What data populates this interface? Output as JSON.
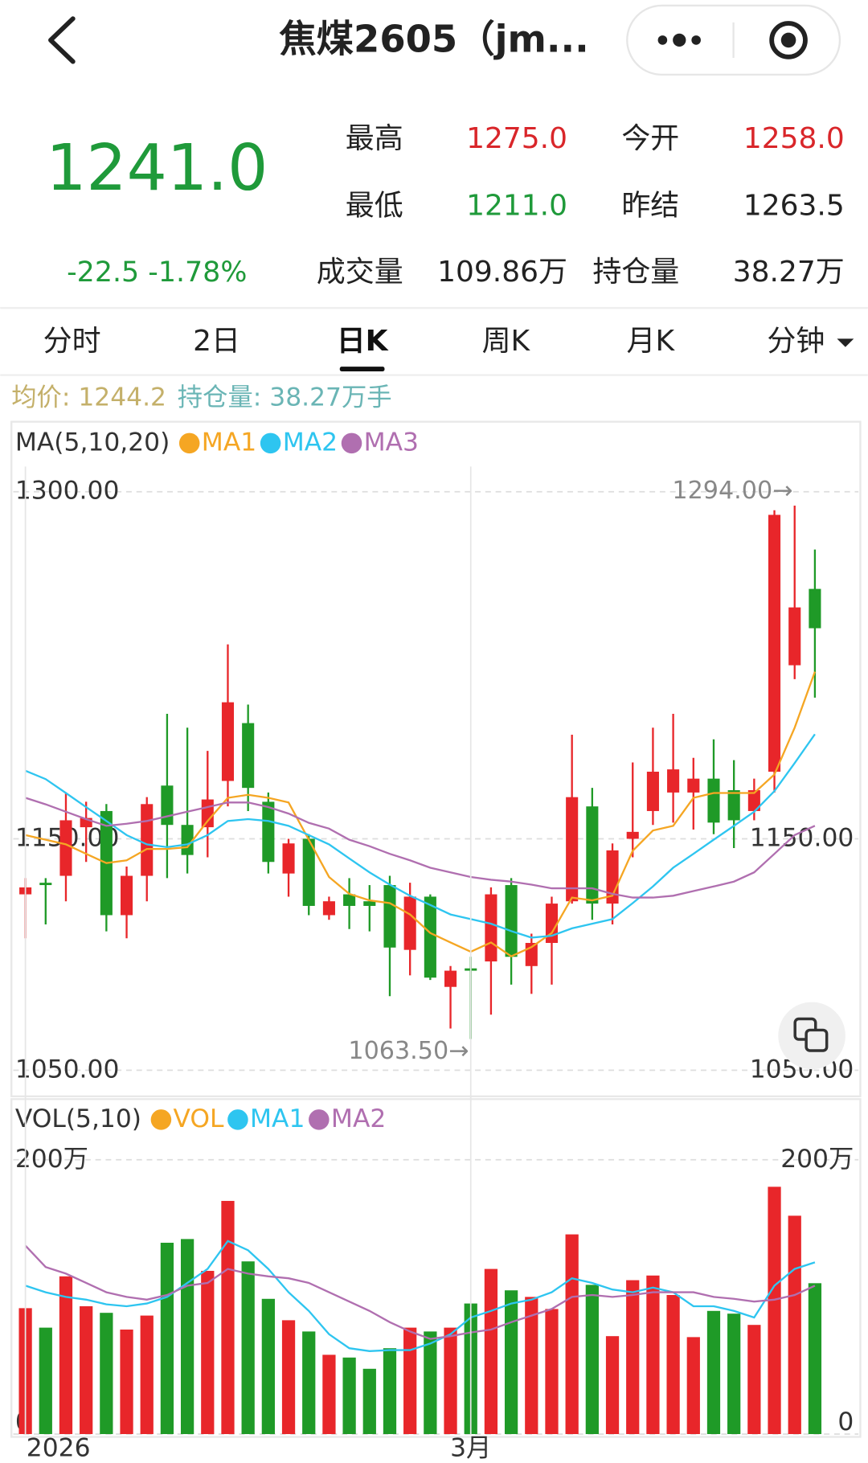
{
  "header": {
    "title": "焦煤2605（jm..."
  },
  "quote": {
    "price": "1241.0",
    "change": "-22.5 -1.78%",
    "stats": [
      {
        "label": "最高",
        "value": "1275.0",
        "color": "#d9262a"
      },
      {
        "label": "今开",
        "value": "1258.0",
        "color": "#d9262a"
      },
      {
        "label": "最低",
        "value": "1211.0",
        "color": "#1f9a3a"
      },
      {
        "label": "昨结",
        "value": "1263.5",
        "color": "#222222"
      },
      {
        "label": "成交量",
        "value": "109.86万",
        "color": "#222222"
      },
      {
        "label": "持仓量",
        "value": "38.27万",
        "color": "#222222"
      }
    ]
  },
  "tabs": [
    "分时",
    "2日",
    "日K",
    "周K",
    "月K",
    "分钟"
  ],
  "active_tab": 2,
  "info": {
    "avg": "均价: 1244.2",
    "oi": "持仓量: 38.27万手"
  },
  "chart_data": [
    {
      "type": "candlestick",
      "legend_title": "MA(5,10,20)",
      "up_color": "#e8262a",
      "down_color": "#1f9a27",
      "open": [
        1126,
        1131,
        1134,
        1155,
        1162,
        1117,
        1134,
        1173,
        1156,
        1155,
        1175,
        1200,
        1166,
        1135,
        1150,
        1117,
        1126,
        1123,
        1130,
        1102,
        1125,
        1086,
        1094,
        1097,
        1130,
        1095,
        1105,
        1123,
        1164,
        1122,
        1150,
        1162,
        1170,
        1170,
        1176,
        1171,
        1162,
        1179,
        1225,
        1258
      ],
      "high": [
        1133,
        1133,
        1170,
        1166,
        1165,
        1138,
        1168,
        1204,
        1198,
        1188,
        1234,
        1208,
        1170,
        1150,
        1152,
        1125,
        1133,
        1130,
        1134,
        1131,
        1126,
        1095,
        1099,
        1129,
        1133,
        1109,
        1125,
        1195,
        1172,
        1148,
        1183,
        1198,
        1204,
        1185,
        1193,
        1184,
        1176,
        1292,
        1294,
        1275
      ],
      "low": [
        1107,
        1113,
        1123,
        1140,
        1110,
        1107,
        1123,
        1133,
        1135,
        1142,
        1164,
        1162,
        1135,
        1125,
        1117,
        1115,
        1111,
        1110,
        1082,
        1091,
        1089,
        1068,
        1063.5,
        1074,
        1087,
        1083,
        1087,
        1122,
        1115,
        1113,
        1142,
        1156,
        1157,
        1154,
        1152,
        1146,
        1158,
        1170,
        1219,
        1211
      ],
      "close": [
        1129,
        1130,
        1158,
        1159,
        1117,
        1134,
        1165,
        1156,
        1143,
        1167,
        1209,
        1172,
        1140,
        1148,
        1121,
        1123,
        1121,
        1121,
        1103,
        1125,
        1090,
        1093,
        1093,
        1126,
        1099,
        1105,
        1122,
        1168,
        1122,
        1145,
        1153,
        1179,
        1180,
        1176,
        1157,
        1158,
        1171,
        1290,
        1250,
        1241
      ],
      "series": [
        {
          "name": "MA1",
          "color": "#f5a623",
          "values": [
            1151.6,
            1149.6,
            1147.6,
            1143.5,
            1139.5,
            1140.7,
            1145.6,
            1145.6,
            1146.4,
            1157.7,
            1167.7,
            1169.0,
            1167.7,
            1165.7,
            1149.6,
            1133.5,
            1126.2,
            1123.4,
            1122.2,
            1117.3,
            1109.3,
            1105.2,
            1101.2,
            1105.2,
            1099.2,
            1103.2,
            1109.3,
            1124.6,
            1123.4,
            1125.4,
            1144.8,
            1153.6,
            1155.6,
            1167.7,
            1169.8,
            1169.8,
            1169.8,
            1177.8,
            1198.0,
            1222.2
          ]
        },
        {
          "name": "MA2",
          "color": "#2ec5f0",
          "values": [
            1179.4,
            1175.8,
            1169.8,
            1163.7,
            1157.7,
            1151.6,
            1147.6,
            1146.4,
            1147.6,
            1151.6,
            1157.7,
            1158.5,
            1157.7,
            1155.6,
            1151.6,
            1147.6,
            1141.5,
            1135.5,
            1130.2,
            1125.4,
            1121.4,
            1117.3,
            1115.3,
            1113.3,
            1110.1,
            1107.3,
            1108.1,
            1111.3,
            1113.3,
            1115.3,
            1122.2,
            1129.4,
            1137.5,
            1143.5,
            1149.6,
            1155.6,
            1161.7,
            1170.6,
            1182.7,
            1195.2
          ]
        },
        {
          "name": "MA3",
          "color": "#b06fb0",
          "values": [
            1167.7,
            1164.9,
            1161.7,
            1158.5,
            1155.6,
            1156.5,
            1157.7,
            1159.7,
            1161.7,
            1163.7,
            1165.7,
            1165.7,
            1163.7,
            1160.9,
            1156.9,
            1154.4,
            1149.6,
            1146.8,
            1143.5,
            1140.7,
            1137.5,
            1135.5,
            1133.5,
            1132.3,
            1131.5,
            1130.2,
            1128.6,
            1128.6,
            1128.6,
            1126.2,
            1124.6,
            1124.6,
            1125.4,
            1127.4,
            1129.4,
            1131.5,
            1135.5,
            1143.5,
            1151.6,
            1155.6
          ]
        }
      ],
      "ylim": [
        1050,
        1300
      ],
      "yticks": [
        {
          "value": 1050,
          "label": "1050.00"
        },
        {
          "value": 1150,
          "label": "1150.00"
        },
        {
          "value": 1300,
          "label": "1300.00"
        }
      ],
      "annotations": [
        {
          "text": "1294.00→",
          "value": 1294
        },
        {
          "text": "1063.50→",
          "value": 1063.5
        }
      ],
      "grid": true
    },
    {
      "type": "bar",
      "legend_title": "VOL(5,10)",
      "name": "VOL",
      "color": "#f5a623",
      "categories": [
        "2026",
        null,
        null,
        null,
        null,
        null,
        null,
        null,
        null,
        null,
        null,
        null,
        null,
        null,
        null,
        null,
        null,
        null,
        null,
        null,
        null,
        null,
        "3月",
        null,
        null,
        null,
        null,
        null,
        null,
        null,
        null,
        null,
        null,
        null,
        null,
        null,
        null,
        null,
        null,
        null
      ],
      "values": [
        91.8,
        77.6,
        115,
        93.2,
        88.4,
        76.2,
        86.4,
        139.5,
        142.2,
        119,
        170,
        125.9,
        98.6,
        83,
        74.8,
        57.8,
        55.8,
        47.6,
        62.6,
        77.6,
        74.8,
        77.6,
        95.2,
        120.4,
        104.8,
        100,
        91.2,
        145.6,
        108.8,
        71.4,
        112.2,
        115.6,
        101.4,
        70.7,
        89.8,
        87.8,
        79.6,
        180.3,
        159.2,
        110
      ],
      "series": [
        {
          "name": "MA1",
          "color": "#2ec5f0",
          "values": [
            108.2,
            103.4,
            100,
            98,
            94.6,
            93.2,
            95.2,
            100,
            110.2,
            120.4,
            140.8,
            134,
            120.4,
            103.4,
            89.8,
            72.8,
            62.6,
            60.5,
            61.2,
            61.2,
            66,
            72.8,
            85,
            89.8,
            95.2,
            98,
            103.4,
            113.6,
            110.2,
            105.4,
            103.4,
            106.8,
            103.4,
            93.2,
            93.2,
            89.8,
            85,
            108.2,
            120.4,
            125.2
          ]
        },
        {
          "name": "MA2",
          "color": "#b06fb0",
          "values": [
            137.4,
            121.8,
            117,
            110.2,
            103.4,
            100,
            98,
            101.4,
            108.2,
            110.2,
            120.4,
            117,
            115,
            113.6,
            110.2,
            103.4,
            96.6,
            89.8,
            81.6,
            74.8,
            69.4,
            71.4,
            74.1,
            76.2,
            81.6,
            86.4,
            91.2,
            100,
            101.4,
            100,
            101.4,
            103.4,
            103.4,
            103.4,
            100,
            98.6,
            96.6,
            98,
            101.4,
            108.2
          ]
        }
      ],
      "ylim": [
        0,
        200
      ],
      "yticks": [
        0,
        {
          "value": 200,
          "label": "200万"
        }
      ],
      "grid": true
    }
  ]
}
